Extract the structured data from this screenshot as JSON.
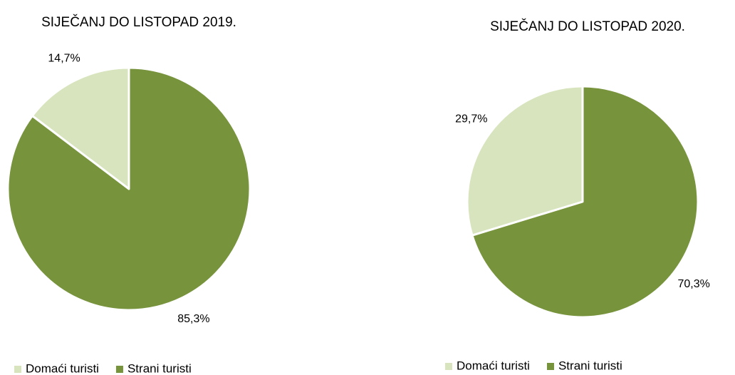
{
  "chart_data": [
    {
      "type": "pie",
      "title": "SIJEČANJ DO LISTOPAD 2019.",
      "categories": [
        "Domaći turisti",
        "Strani turisti"
      ],
      "values": [
        14.7,
        85.3
      ],
      "value_labels": [
        "14,7%",
        "85,3%"
      ],
      "colors": [
        "#d7e4bd",
        "#77933c"
      ]
    },
    {
      "type": "pie",
      "title": "SIJEČANJ DO LISTOPAD 2020.",
      "categories": [
        "Domaći turisti",
        "Strani turisti"
      ],
      "values": [
        29.7,
        70.3
      ],
      "value_labels": [
        "29,7%",
        "70,3%"
      ],
      "colors": [
        "#d7e4bd",
        "#77933c"
      ]
    }
  ]
}
